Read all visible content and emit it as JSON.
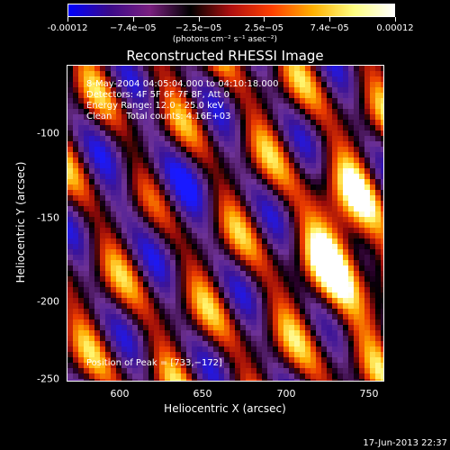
{
  "colorbar": {
    "tick_labels": [
      "-0.00012",
      "−7.4e−05",
      "−2.5e−05",
      "2.5e−05",
      "7.4e−05",
      "0.00012"
    ],
    "units": "(photons cm⁻² s⁻¹ asec⁻²)",
    "range": [
      -0.00012,
      0.00012
    ],
    "colormap": [
      "#0000ff",
      "#3a0a8a",
      "#7a2080",
      "#000000",
      "#b01010",
      "#ff4000",
      "#ffb000",
      "#ffff80",
      "#ffffff"
    ]
  },
  "chart_data": {
    "type": "heatmap",
    "title": "Reconstructed RHESSI Image",
    "xlabel": "Heliocentric X (arcsec)",
    "ylabel": "Heliocentric Y (arcsec)",
    "xlim": [
      565,
      755
    ],
    "ylim": [
      -252,
      -63
    ],
    "x_ticks": [
      "600",
      "650",
      "700",
      "750"
    ],
    "y_ticks": [
      "-100",
      "-150",
      "-200",
      "-250"
    ],
    "peak": [
      733,
      -172
    ],
    "annotations": {
      "time_range": "8-May-2004 04:05:04.000 to 04:10:18.000",
      "detectors": "Detectors: 4F 5F 6F 7F 8F, Att 0",
      "energy": "Energy Range: 12.0 - 25.0 keV",
      "clean": "Clean     Total counts: 4.16E+03",
      "peak_text": "Position of Peak = [733,−172]"
    }
  },
  "timestamp": "17-Jun-2013 22:37"
}
